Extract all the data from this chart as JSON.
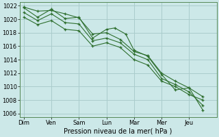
{
  "background_color": "#cce8e8",
  "grid_color": "#aacccc",
  "line_color": "#2d6e2d",
  "marker_color": "#2d6e2d",
  "xlabel": "Pression niveau de la mer( hPa )",
  "ylim": [
    1005.5,
    1022.5
  ],
  "yticks": [
    1006,
    1008,
    1010,
    1012,
    1014,
    1016,
    1018,
    1020,
    1022
  ],
  "day_labels": [
    "Dim",
    "Ven",
    "Sam",
    "Lun",
    "Mar",
    "Mer",
    "Jeu"
  ],
  "series": {
    "line1": {
      "x": [
        0.0,
        0.5,
        1.0,
        1.5,
        2.0,
        2.5,
        3.0,
        3.3,
        3.7,
        4.0,
        4.5,
        5.0,
        5.5,
        6.0,
        6.5
      ],
      "y": [
        1021.7,
        1020.3,
        1021.5,
        1020.1,
        1020.3,
        1017.2,
        1018.5,
        1018.7,
        1017.8,
        1015.4,
        1014.5,
        1011.8,
        1009.5,
        1009.8,
        1006.5
      ]
    },
    "line2": {
      "x": [
        0.0,
        0.5,
        1.0,
        1.5,
        2.0,
        2.5,
        3.0,
        3.5,
        4.0,
        4.5,
        5.0,
        5.5,
        6.0,
        6.5
      ],
      "y": [
        1021.0,
        1019.8,
        1020.8,
        1019.5,
        1019.3,
        1016.8,
        1017.2,
        1016.5,
        1014.8,
        1014.0,
        1011.2,
        1010.3,
        1009.2,
        1007.2
      ]
    },
    "line3": {
      "x": [
        0.0,
        0.5,
        1.0,
        1.5,
        2.0,
        2.5,
        3.0,
        3.5,
        4.0,
        4.5,
        5.0,
        5.5,
        6.0,
        6.5
      ],
      "y": [
        1020.3,
        1019.2,
        1019.8,
        1018.5,
        1018.3,
        1016.0,
        1016.5,
        1015.8,
        1014.0,
        1013.2,
        1010.8,
        1010.0,
        1008.8,
        1008.0
      ]
    },
    "line4": {
      "x": [
        0.0,
        0.5,
        1.0,
        1.5,
        2.0,
        2.5,
        3.0,
        3.5,
        4.0,
        4.5,
        5.0,
        5.5,
        6.0,
        6.5
      ],
      "y": [
        1021.8,
        1021.2,
        1021.3,
        1020.8,
        1020.2,
        1017.8,
        1018.0,
        1017.0,
        1015.2,
        1014.6,
        1012.0,
        1010.8,
        1009.8,
        1008.5
      ]
    }
  },
  "xlim": [
    -0.15,
    7.0
  ],
  "day_x": [
    0,
    1,
    2,
    3,
    4,
    5,
    6
  ],
  "label_fontsize": 6,
  "xlabel_fontsize": 7
}
